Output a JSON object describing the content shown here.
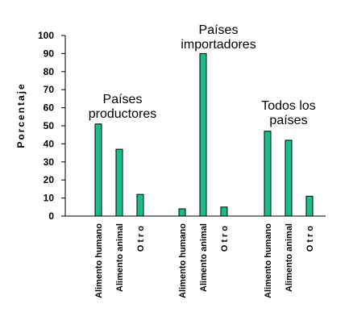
{
  "chart_data": {
    "type": "bar",
    "ylabel": "Porcentaje",
    "ylim": [
      0,
      100
    ],
    "yticks": [
      0,
      10,
      20,
      30,
      40,
      50,
      60,
      70,
      80,
      90,
      100
    ],
    "grid": false,
    "groups": [
      {
        "label_lines": [
          "Países",
          "productores"
        ],
        "categories": [
          "Alimento humano",
          "Alimento animal",
          "Otro"
        ],
        "values": [
          51,
          37,
          12
        ]
      },
      {
        "label_lines": [
          "Países",
          "importadores"
        ],
        "categories": [
          "Alimento humano",
          "Alimento animal",
          "Otro"
        ],
        "values": [
          4,
          90,
          5
        ]
      },
      {
        "label_lines": [
          "Todos los",
          "países"
        ],
        "categories": [
          "Alimento humano",
          "Alimento animal",
          "Otro"
        ],
        "values": [
          47,
          42,
          11
        ]
      }
    ],
    "colors": {
      "bar_fill": "#1ABC8C",
      "bar_stroke": "#000000"
    }
  }
}
